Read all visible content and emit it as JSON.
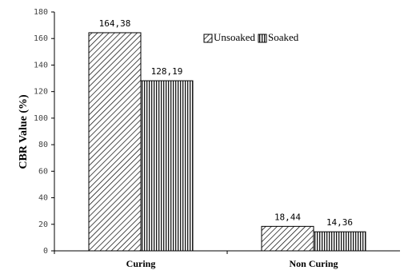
{
  "chart_data": {
    "type": "bar",
    "categories": [
      "Curing",
      "Non Curing"
    ],
    "series": [
      {
        "name": "Unsoaked",
        "color": "#000000",
        "pattern": "diagonal",
        "values": [
          164.38,
          18.44
        ],
        "value_labels": [
          "164,38",
          "18,44"
        ]
      },
      {
        "name": "Soaked",
        "color": "#000000",
        "pattern": "vertical",
        "values": [
          128.19,
          14.36
        ],
        "value_labels": [
          "128,19",
          "14,36"
        ]
      }
    ],
    "ylabel": "CBR Value (%)",
    "ylim": [
      0,
      180
    ],
    "yticks": [
      0,
      20,
      40,
      60,
      80,
      100,
      120,
      140,
      160,
      180
    ],
    "legend": "top-center"
  }
}
